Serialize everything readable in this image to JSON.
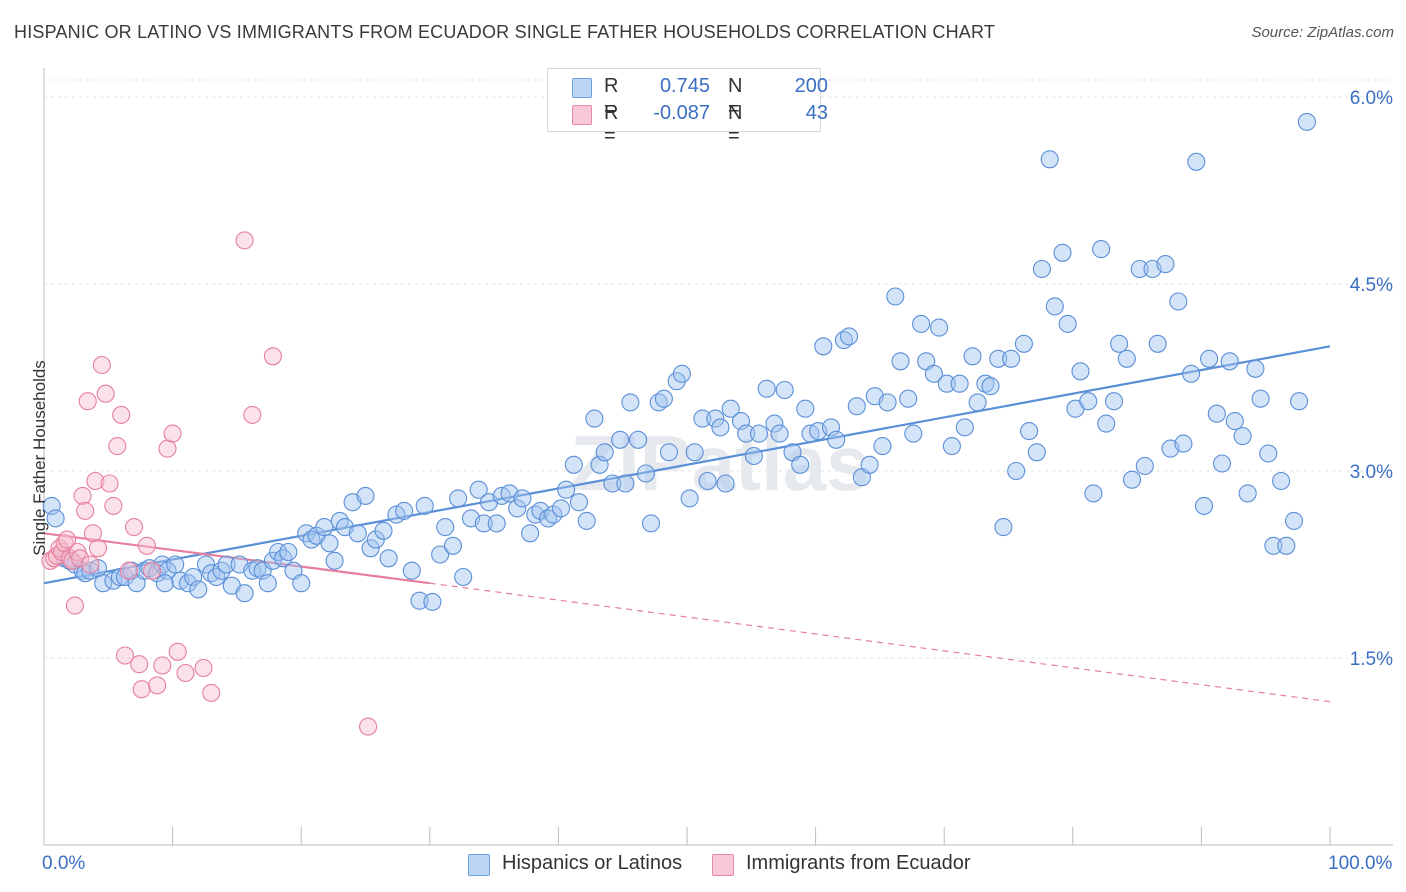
{
  "title": "HISPANIC OR LATINO VS IMMIGRANTS FROM ECUADOR SINGLE FATHER HOUSEHOLDS CORRELATION CHART",
  "source": "Source: ZipAtlas.com",
  "watermark": "ZIPatlas",
  "legend": {
    "rows": [
      {
        "r_label": "R =",
        "r_value": "0.745",
        "n_label": "N =",
        "n_value": "200",
        "color": "#a9c8f0",
        "border": "#6d9fe0"
      },
      {
        "r_label": "R =",
        "r_value": "-0.087",
        "n_label": "N =",
        "n_value": "43",
        "color": "#f6bccd",
        "border": "#e889a8"
      }
    ]
  },
  "bottom_legend": [
    {
      "label": "Hispanics or Latinos",
      "color": "#bcd5f3",
      "border": "#6d9fe0"
    },
    {
      "label": "Immigrants from Ecuador",
      "color": "#f8c8d6",
      "border": "#e889a8"
    }
  ],
  "axes": {
    "y_label": "Single Father Households",
    "x_min_label": "0.0%",
    "x_max_label": "100.0%",
    "y_tick_labels": [
      "6.0%",
      "4.5%",
      "3.0%",
      "1.5%"
    ]
  },
  "chart_data": {
    "type": "scatter",
    "xlim": [
      0,
      100
    ],
    "ylim": [
      0.0,
      6.2
    ],
    "y_ticks": [
      6.0,
      4.5,
      3.0,
      1.5
    ],
    "grid": true,
    "series": [
      {
        "name": "Hispanics or Latinos",
        "color": "#5b8fd8",
        "fill": "rgba(160,195,240,0.45)",
        "trend": {
          "x": [
            0,
            100
          ],
          "y": [
            2.1,
            4.0
          ],
          "style": "solid"
        },
        "points": [
          [
            0.6,
            2.72
          ],
          [
            0.9,
            2.62
          ],
          [
            1.6,
            2.3
          ],
          [
            2.0,
            2.28
          ],
          [
            2.4,
            2.25
          ],
          [
            3.0,
            2.2
          ],
          [
            3.2,
            2.18
          ],
          [
            3.6,
            2.2
          ],
          [
            4.2,
            2.22
          ],
          [
            4.6,
            2.1
          ],
          [
            5.4,
            2.12
          ],
          [
            5.9,
            2.15
          ],
          [
            6.3,
            2.15
          ],
          [
            6.8,
            2.2
          ],
          [
            7.2,
            2.1
          ],
          [
            7.8,
            2.2
          ],
          [
            8.2,
            2.22
          ],
          [
            8.8,
            2.18
          ],
          [
            9.2,
            2.25
          ],
          [
            9.6,
            2.2
          ],
          [
            9.4,
            2.1
          ],
          [
            10.2,
            2.25
          ],
          [
            10.6,
            2.12
          ],
          [
            11.2,
            2.1
          ],
          [
            11.6,
            2.15
          ],
          [
            12.0,
            2.05
          ],
          [
            12.6,
            2.25
          ],
          [
            13.0,
            2.18
          ],
          [
            13.4,
            2.15
          ],
          [
            13.8,
            2.2
          ],
          [
            14.2,
            2.25
          ],
          [
            14.6,
            2.08
          ],
          [
            15.2,
            2.25
          ],
          [
            15.6,
            2.02
          ],
          [
            16.2,
            2.2
          ],
          [
            16.6,
            2.22
          ],
          [
            17.0,
            2.2
          ],
          [
            17.4,
            2.1
          ],
          [
            17.8,
            2.28
          ],
          [
            18.2,
            2.35
          ],
          [
            18.6,
            2.3
          ],
          [
            19.0,
            2.35
          ],
          [
            19.4,
            2.2
          ],
          [
            20.0,
            2.1
          ],
          [
            20.4,
            2.5
          ],
          [
            20.8,
            2.45
          ],
          [
            21.2,
            2.48
          ],
          [
            21.8,
            2.55
          ],
          [
            22.2,
            2.42
          ],
          [
            22.6,
            2.28
          ],
          [
            23.0,
            2.6
          ],
          [
            23.4,
            2.55
          ],
          [
            24.0,
            2.75
          ],
          [
            24.4,
            2.5
          ],
          [
            25.0,
            2.8
          ],
          [
            25.4,
            2.38
          ],
          [
            25.8,
            2.45
          ],
          [
            26.4,
            2.52
          ],
          [
            26.8,
            2.3
          ],
          [
            27.4,
            2.65
          ],
          [
            28.0,
            2.68
          ],
          [
            28.6,
            2.2
          ],
          [
            29.2,
            1.96
          ],
          [
            29.6,
            2.72
          ],
          [
            30.2,
            1.95
          ],
          [
            30.8,
            2.33
          ],
          [
            31.2,
            2.55
          ],
          [
            31.8,
            2.4
          ],
          [
            32.2,
            2.78
          ],
          [
            32.6,
            2.15
          ],
          [
            33.2,
            2.62
          ],
          [
            33.8,
            2.85
          ],
          [
            34.2,
            2.58
          ],
          [
            34.6,
            2.75
          ],
          [
            35.2,
            2.58
          ],
          [
            35.6,
            2.8
          ],
          [
            36.2,
            2.82
          ],
          [
            36.8,
            2.7
          ],
          [
            37.2,
            2.78
          ],
          [
            37.8,
            2.5
          ],
          [
            38.2,
            2.65
          ],
          [
            38.6,
            2.68
          ],
          [
            39.2,
            2.62
          ],
          [
            39.6,
            2.65
          ],
          [
            40.2,
            2.7
          ],
          [
            40.6,
            2.85
          ],
          [
            41.2,
            3.05
          ],
          [
            41.6,
            2.75
          ],
          [
            42.2,
            2.6
          ],
          [
            42.8,
            3.42
          ],
          [
            43.2,
            3.05
          ],
          [
            43.6,
            3.15
          ],
          [
            44.2,
            2.9
          ],
          [
            44.8,
            3.25
          ],
          [
            45.2,
            2.9
          ],
          [
            45.6,
            3.55
          ],
          [
            46.2,
            3.25
          ],
          [
            46.8,
            2.98
          ],
          [
            47.2,
            2.58
          ],
          [
            47.8,
            3.55
          ],
          [
            48.2,
            3.58
          ],
          [
            48.6,
            3.15
          ],
          [
            49.2,
            3.72
          ],
          [
            49.6,
            3.78
          ],
          [
            50.2,
            2.78
          ],
          [
            50.6,
            3.15
          ],
          [
            51.2,
            3.42
          ],
          [
            51.6,
            2.92
          ],
          [
            52.2,
            3.42
          ],
          [
            52.6,
            3.35
          ],
          [
            53.0,
            2.9
          ],
          [
            53.4,
            3.5
          ],
          [
            54.2,
            3.4
          ],
          [
            54.6,
            3.3
          ],
          [
            55.2,
            3.12
          ],
          [
            55.6,
            3.3
          ],
          [
            56.2,
            3.66
          ],
          [
            56.8,
            3.38
          ],
          [
            57.2,
            3.3
          ],
          [
            57.6,
            3.65
          ],
          [
            58.2,
            3.15
          ],
          [
            58.8,
            3.05
          ],
          [
            59.2,
            3.5
          ],
          [
            59.6,
            3.3
          ],
          [
            60.2,
            3.32
          ],
          [
            60.6,
            4.0
          ],
          [
            61.2,
            3.35
          ],
          [
            61.6,
            3.25
          ],
          [
            62.2,
            4.05
          ],
          [
            62.6,
            4.08
          ],
          [
            63.2,
            3.52
          ],
          [
            63.6,
            2.95
          ],
          [
            64.2,
            3.05
          ],
          [
            64.6,
            3.6
          ],
          [
            65.2,
            3.2
          ],
          [
            65.6,
            3.55
          ],
          [
            66.2,
            4.4
          ],
          [
            66.6,
            3.88
          ],
          [
            67.2,
            3.58
          ],
          [
            67.6,
            3.3
          ],
          [
            68.2,
            4.18
          ],
          [
            68.6,
            3.88
          ],
          [
            69.2,
            3.78
          ],
          [
            69.6,
            4.15
          ],
          [
            70.2,
            3.7
          ],
          [
            70.6,
            3.2
          ],
          [
            71.2,
            3.7
          ],
          [
            71.6,
            3.35
          ],
          [
            72.2,
            3.92
          ],
          [
            72.6,
            3.55
          ],
          [
            73.2,
            3.7
          ],
          [
            73.6,
            3.68
          ],
          [
            74.2,
            3.9
          ],
          [
            74.6,
            2.55
          ],
          [
            75.2,
            3.9
          ],
          [
            75.6,
            3.0
          ],
          [
            76.2,
            4.02
          ],
          [
            76.6,
            3.32
          ],
          [
            77.2,
            3.15
          ],
          [
            77.6,
            4.62
          ],
          [
            78.2,
            5.5
          ],
          [
            78.6,
            4.32
          ],
          [
            79.2,
            4.75
          ],
          [
            79.6,
            4.18
          ],
          [
            80.2,
            3.5
          ],
          [
            80.6,
            3.8
          ],
          [
            81.2,
            3.56
          ],
          [
            81.6,
            2.82
          ],
          [
            82.2,
            4.78
          ],
          [
            82.6,
            3.38
          ],
          [
            83.2,
            3.56
          ],
          [
            83.6,
            4.02
          ],
          [
            84.2,
            3.9
          ],
          [
            84.6,
            2.93
          ],
          [
            85.2,
            4.62
          ],
          [
            85.6,
            3.04
          ],
          [
            86.2,
            4.62
          ],
          [
            86.6,
            4.02
          ],
          [
            87.2,
            4.66
          ],
          [
            87.6,
            3.18
          ],
          [
            88.2,
            4.36
          ],
          [
            88.6,
            3.22
          ],
          [
            89.2,
            3.78
          ],
          [
            89.6,
            5.48
          ],
          [
            90.2,
            2.72
          ],
          [
            90.6,
            3.9
          ],
          [
            91.2,
            3.46
          ],
          [
            91.6,
            3.06
          ],
          [
            92.2,
            3.88
          ],
          [
            92.6,
            3.4
          ],
          [
            93.2,
            3.28
          ],
          [
            93.6,
            2.82
          ],
          [
            94.2,
            3.82
          ],
          [
            94.6,
            3.58
          ],
          [
            95.2,
            3.14
          ],
          [
            95.6,
            2.4
          ],
          [
            96.2,
            2.92
          ],
          [
            96.6,
            2.4
          ],
          [
            97.2,
            2.6
          ],
          [
            97.6,
            3.56
          ],
          [
            98.2,
            5.8
          ]
        ]
      },
      {
        "name": "Immigrants from Ecuador",
        "color": "#e67f9f",
        "fill": "rgba(246,188,205,0.45)",
        "trend": {
          "x": [
            0,
            30
          ],
          "y": [
            2.5,
            2.1
          ],
          "style": "solid",
          "dashed_to": [
            100,
            1.15
          ]
        },
        "points": [
          [
            0.5,
            2.28
          ],
          [
            0.8,
            2.3
          ],
          [
            1.0,
            2.32
          ],
          [
            1.2,
            2.38
          ],
          [
            1.4,
            2.35
          ],
          [
            1.6,
            2.42
          ],
          [
            1.8,
            2.45
          ],
          [
            2.0,
            2.3
          ],
          [
            2.2,
            2.28
          ],
          [
            2.4,
            1.92
          ],
          [
            2.6,
            2.35
          ],
          [
            2.8,
            2.3
          ],
          [
            3.0,
            2.8
          ],
          [
            3.2,
            2.68
          ],
          [
            3.4,
            3.56
          ],
          [
            3.6,
            2.25
          ],
          [
            3.8,
            2.5
          ],
          [
            4.0,
            2.92
          ],
          [
            4.2,
            2.38
          ],
          [
            4.5,
            3.85
          ],
          [
            4.8,
            3.62
          ],
          [
            5.1,
            2.9
          ],
          [
            5.4,
            2.72
          ],
          [
            5.7,
            3.2
          ],
          [
            6.0,
            3.45
          ],
          [
            6.3,
            1.52
          ],
          [
            6.6,
            2.2
          ],
          [
            7.0,
            2.55
          ],
          [
            7.4,
            1.45
          ],
          [
            7.6,
            1.25
          ],
          [
            8.0,
            2.4
          ],
          [
            8.4,
            2.2
          ],
          [
            8.8,
            1.28
          ],
          [
            9.2,
            1.44
          ],
          [
            9.6,
            3.18
          ],
          [
            10.0,
            3.3
          ],
          [
            10.4,
            1.55
          ],
          [
            11.0,
            1.38
          ],
          [
            12.4,
            1.42
          ],
          [
            13.0,
            1.22
          ],
          [
            15.6,
            4.85
          ],
          [
            16.2,
            3.45
          ],
          [
            17.8,
            3.92
          ],
          [
            25.2,
            0.95
          ]
        ]
      }
    ]
  }
}
